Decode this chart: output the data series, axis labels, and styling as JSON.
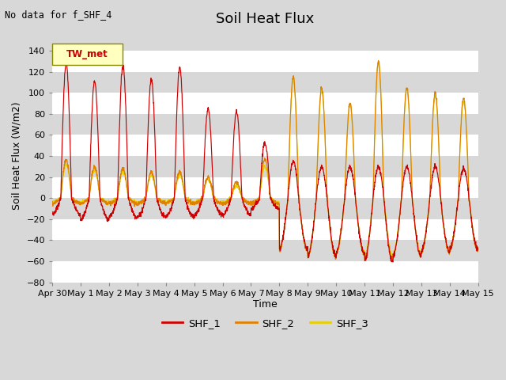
{
  "title": "Soil Heat Flux",
  "top_left_note": "No data for f_SHF_4",
  "ylabel": "Soil Heat Flux (W/m2)",
  "xlabel": "Time",
  "legend_label": "TW_met",
  "series_labels": [
    "SHF_1",
    "SHF_2",
    "SHF_3"
  ],
  "series_colors": [
    "#cc0000",
    "#e08000",
    "#e8d000"
  ],
  "ylim": [
    -80,
    160
  ],
  "yticks": [
    -80,
    -60,
    -40,
    -20,
    0,
    20,
    40,
    60,
    80,
    100,
    120,
    140
  ],
  "xtick_labels": [
    "Apr 30",
    "May 1",
    "May 2",
    "May 3",
    "May 4",
    "May 5",
    "May 6",
    "May 7",
    "May 8",
    "May 9",
    "May 10",
    "May 11",
    "May 12",
    "May 13",
    "May 14",
    "May 15"
  ],
  "background_color": "#d8d8d8",
  "plot_bg_alt1": "#d8d8d8",
  "plot_bg_alt2": "#c8c8c8",
  "grid_color": "#ffffff",
  "title_fontsize": 13,
  "label_fontsize": 9,
  "tick_fontsize": 8
}
